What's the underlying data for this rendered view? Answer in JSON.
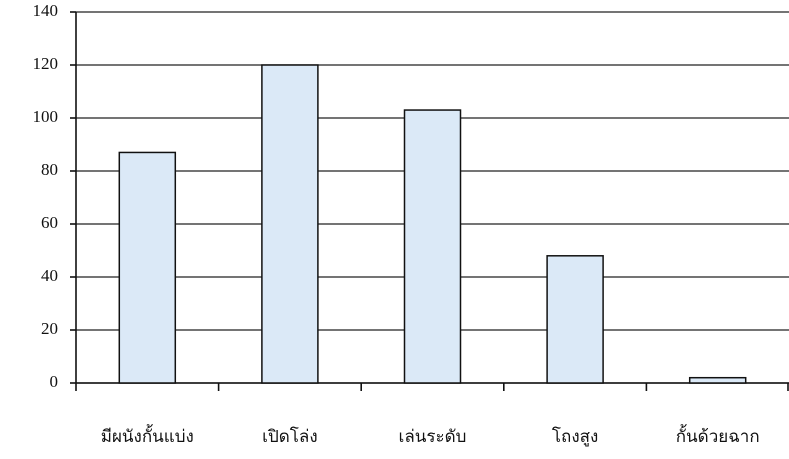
{
  "chart_data": {
    "type": "bar",
    "categories": [
      "มีผนังกั้นแบ่ง",
      "เปิดโล่ง",
      "เล่นระดับ",
      "โถงสูง",
      "กั้นด้วยฉาก"
    ],
    "values": [
      87,
      120,
      103,
      48,
      2
    ],
    "color": "#dbe9f7",
    "ylim": [
      0,
      140
    ],
    "yticks": [
      0,
      20,
      40,
      60,
      80,
      100,
      120,
      140
    ],
    "grid": true
  }
}
